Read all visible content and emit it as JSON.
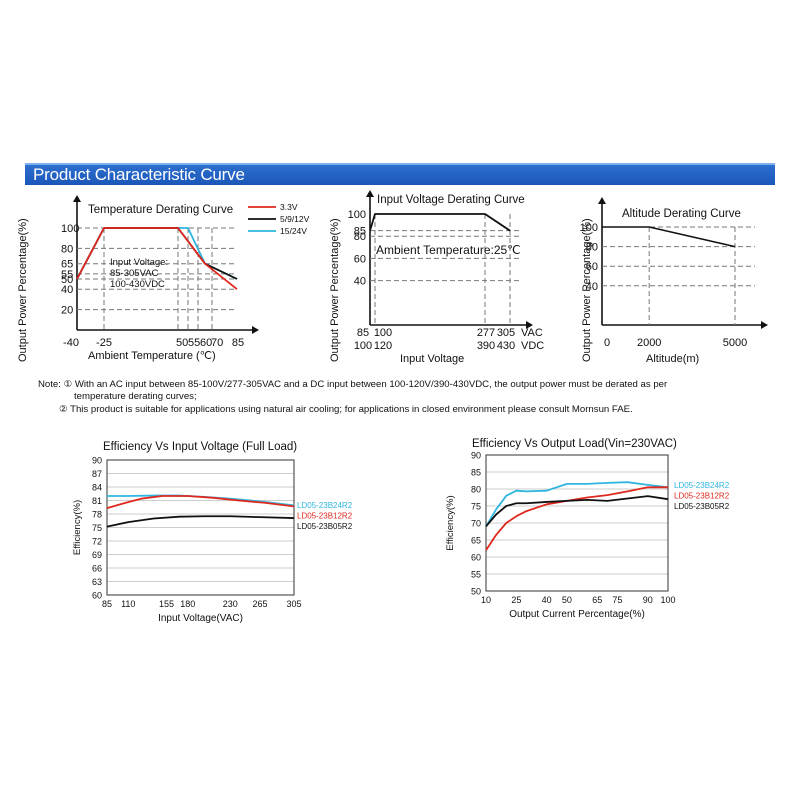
{
  "banner": {
    "title": "Product Characteristic Curve"
  },
  "notes": {
    "line1": "Note: ① With an AC input between 85-100V/277-305VAC and a DC input between 100-120V/390-430VDC, the output power must be derated as per",
    "line2": "temperature derating curves;",
    "line3": "② This product is suitable for applications using natural air cooling; for applications in closed environment please consult Mornsun FAE."
  },
  "colors": {
    "red": "#e0281e",
    "cyan": "#2fb6e0",
    "black": "#111111",
    "grid": "#888888"
  },
  "chart_data": [
    {
      "id": "temp",
      "type": "line",
      "title": "Temperature Derating Curve",
      "ylabel": "Output Power Percentage(%)",
      "xlabel": "Ambient Temperature (℃)",
      "xlim": [
        -40,
        85
      ],
      "ylim": [
        0,
        110
      ],
      "x_ticks": [
        "-40",
        "-25",
        "50",
        "55",
        "60",
        "70",
        "85"
      ],
      "y_ticks": [
        "100",
        "80",
        "65",
        "55",
        "50",
        "40",
        "20"
      ],
      "annotation": [
        "Input Voltage:",
        "85-305VAC",
        "100-430VDC"
      ],
      "series": [
        {
          "name": "3.3V",
          "color": "red",
          "x": [
            -40,
            -25,
            50,
            65,
            85
          ],
          "y": [
            50,
            100,
            100,
            65,
            40
          ]
        },
        {
          "name": "5/9/12V",
          "color": "black",
          "x": [
            -40,
            -25,
            50,
            65,
            85
          ],
          "y": [
            50,
            100,
            100,
            65,
            50
          ]
        },
        {
          "name": "15/24V",
          "color": "cyan",
          "x": [
            -40,
            -25,
            55,
            65,
            85
          ],
          "y": [
            50,
            100,
            100,
            65,
            50
          ]
        }
      ]
    },
    {
      "id": "vin",
      "type": "line",
      "title": "Input Voltage Derating Curve",
      "ylabel": "Output Power Percentage(%)",
      "xlabel": "Input Voltage",
      "annotation": "Ambient Temperature:25℃",
      "ylim": [
        0,
        110
      ],
      "y_ticks": [
        "100",
        "85",
        "80",
        "60",
        "40"
      ],
      "x_ticks_ac": [
        "85",
        "100",
        "277",
        "305",
        "VAC"
      ],
      "x_ticks_dc": [
        "100",
        "120",
        "390",
        "430",
        "VDC"
      ],
      "series": [
        {
          "name": "derating",
          "color": "black",
          "x": [
            85,
            100,
            277,
            305
          ],
          "y": [
            85,
            100,
            100,
            85
          ]
        }
      ]
    },
    {
      "id": "alt",
      "type": "line",
      "title": "Altitude Derating Curve",
      "ylabel": "Output Power Percentage(%)",
      "xlabel": "Altitude(m)",
      "xlim": [
        0,
        5000
      ],
      "ylim": [
        0,
        110
      ],
      "x_ticks": [
        "0",
        "2000",
        "5000"
      ],
      "y_ticks": [
        "100",
        "80",
        "60",
        "40"
      ],
      "series": [
        {
          "name": "derating",
          "color": "black",
          "x": [
            0,
            2000,
            5000
          ],
          "y": [
            100,
            100,
            80
          ]
        }
      ]
    },
    {
      "id": "eff_vin",
      "type": "line",
      "title": "Efficiency Vs Input Voltage (Full Load)",
      "ylabel": "Efficiency(%)",
      "xlabel": "Input Voltage(VAC)",
      "x_ticks": [
        "85",
        "110",
        "155",
        "180",
        "230",
        "265",
        "305"
      ],
      "xlim": [
        85,
        305
      ],
      "y_ticks": [
        "90",
        "87",
        "84",
        "81",
        "78",
        "75",
        "72",
        "69",
        "66",
        "63",
        "60"
      ],
      "ylim": [
        60,
        90
      ],
      "series": [
        {
          "name": "LD05-23B24R2",
          "color": "cyan",
          "x": [
            85,
            110,
            140,
            170,
            200,
            230,
            265,
            305
          ],
          "y": [
            82,
            82,
            82.1,
            82.1,
            81.8,
            81.4,
            80.8,
            79.9
          ]
        },
        {
          "name": "LD05-23B12R2",
          "color": "red",
          "x": [
            85,
            105,
            125,
            150,
            180,
            210,
            240,
            270,
            305
          ],
          "y": [
            79.3,
            80.4,
            81.4,
            82.0,
            82.0,
            81.6,
            81.0,
            80.5,
            79.7
          ]
        },
        {
          "name": "LD05-23B05R2",
          "color": "black",
          "x": [
            85,
            110,
            140,
            170,
            200,
            230,
            265,
            305
          ],
          "y": [
            75.2,
            76.2,
            77.0,
            77.4,
            77.5,
            77.5,
            77.3,
            77.1
          ]
        }
      ]
    },
    {
      "id": "eff_load",
      "type": "line",
      "title": "Efficiency Vs Output Load(Vin=230VAC)",
      "ylabel": "Efficiency(%)",
      "xlabel": "Output Current Percentage(%)",
      "x_ticks": [
        "10",
        "25",
        "40",
        "50",
        "65",
        "75",
        "90",
        "100"
      ],
      "xlim": [
        10,
        100
      ],
      "y_ticks": [
        "90",
        "85",
        "80",
        "75",
        "70",
        "65",
        "60",
        "55",
        "50"
      ],
      "ylim": [
        50,
        90
      ],
      "series": [
        {
          "name": "LD05-23B24R2",
          "color": "cyan",
          "x": [
            10,
            15,
            20,
            25,
            30,
            40,
            50,
            60,
            70,
            80,
            90,
            100
          ],
          "y": [
            69,
            74,
            78,
            79.5,
            79.3,
            79.5,
            81.5,
            81.5,
            81.8,
            82.0,
            81.2,
            80.5
          ]
        },
        {
          "name": "LD05-23B12R2",
          "color": "red",
          "x": [
            10,
            15,
            20,
            25,
            30,
            40,
            50,
            60,
            70,
            80,
            90,
            100
          ],
          "y": [
            62,
            66.5,
            70,
            72,
            73.5,
            75.5,
            76.5,
            77.5,
            78.2,
            79.3,
            80.5,
            80.5
          ]
        },
        {
          "name": "LD05-23B05R2",
          "color": "black",
          "x": [
            10,
            15,
            20,
            25,
            30,
            40,
            50,
            60,
            70,
            80,
            90,
            100
          ],
          "y": [
            69,
            72.5,
            75,
            75.8,
            75.8,
            76.2,
            76.5,
            76.8,
            76.5,
            77.2,
            77.9,
            77.0
          ]
        }
      ]
    }
  ]
}
